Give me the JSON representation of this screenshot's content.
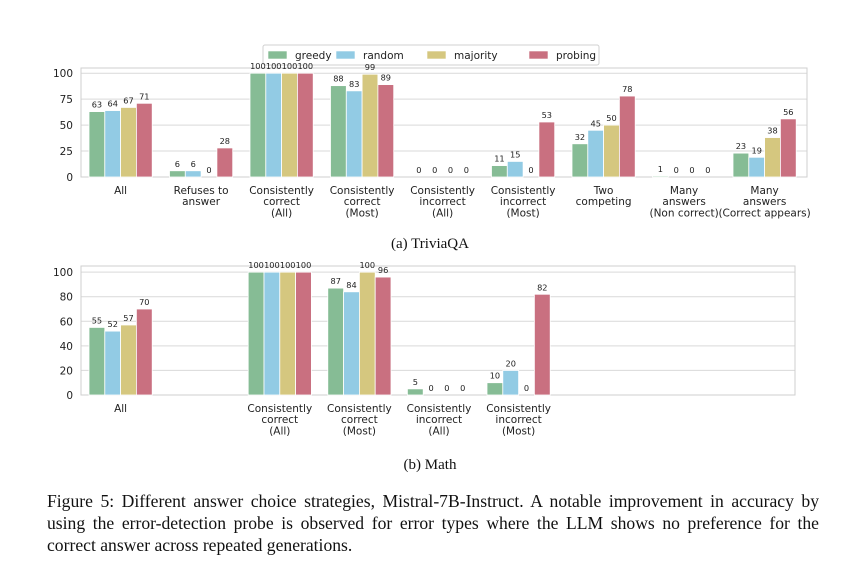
{
  "legend": [
    {
      "name": "greedy",
      "color": "#86bc95"
    },
    {
      "name": "random",
      "color": "#92cbe4"
    },
    {
      "name": "majority",
      "color": "#d5c77f"
    },
    {
      "name": "probing",
      "color": "#c97080"
    }
  ],
  "chart_data": [
    {
      "type": "bar",
      "title": "(a) TriviaQA",
      "ylim": [
        0,
        105
      ],
      "yticks": [
        0,
        25,
        50,
        75,
        100
      ],
      "categories": [
        [
          "All"
        ],
        [
          "Refuses to",
          "answer"
        ],
        [
          "Consistently",
          "correct",
          "(All)"
        ],
        [
          "Consistently",
          "correct",
          "(Most)"
        ],
        [
          "Consistently",
          "incorrect",
          "(All)"
        ],
        [
          "Consistently",
          "incorrect",
          "(Most)"
        ],
        [
          "Two",
          "competing"
        ],
        [
          "Many",
          "answers",
          "(Non correct)"
        ],
        [
          "Many",
          "answers",
          "(Correct appears)"
        ]
      ],
      "series": [
        {
          "name": "greedy",
          "values": [
            63,
            6,
            100,
            88,
            0,
            11,
            32,
            1,
            23
          ]
        },
        {
          "name": "random",
          "values": [
            64,
            6,
            100,
            83,
            0,
            15,
            45,
            0,
            19
          ]
        },
        {
          "name": "majority",
          "values": [
            67,
            0,
            100,
            99,
            0,
            0,
            50,
            0,
            38
          ]
        },
        {
          "name": "probing",
          "values": [
            71,
            28,
            100,
            89,
            0,
            53,
            78,
            0,
            56
          ]
        }
      ]
    },
    {
      "type": "bar",
      "title": "(b) Math",
      "ylim": [
        0,
        105
      ],
      "yticks": [
        0,
        20,
        40,
        60,
        80,
        100
      ],
      "categories": [
        [
          "All"
        ],
        [],
        [
          "Consistently",
          "correct",
          "(All)"
        ],
        [
          "Consistently",
          "correct",
          "(Most)"
        ],
        [
          "Consistently",
          "incorrect",
          "(All)"
        ],
        [
          "Consistently",
          "incorrect",
          "(Most)"
        ],
        [],
        [],
        []
      ],
      "series": [
        {
          "name": "greedy",
          "values": [
            55,
            null,
            100,
            87,
            5,
            10,
            null,
            null,
            null
          ]
        },
        {
          "name": "random",
          "values": [
            52,
            null,
            100,
            84,
            0,
            20,
            null,
            null,
            null
          ]
        },
        {
          "name": "majority",
          "values": [
            57,
            null,
            100,
            100,
            0,
            0,
            null,
            null,
            null
          ]
        },
        {
          "name": "probing",
          "values": [
            70,
            null,
            100,
            96,
            0,
            82,
            null,
            null,
            null
          ]
        }
      ]
    }
  ],
  "caption": "Figure 5: Different answer choice strategies, Mistral-7B-Instruct. A notable improvement in accuracy by using the error-detection probe is observed for error types where the LLM shows no preference for the correct answer across repeated generations."
}
